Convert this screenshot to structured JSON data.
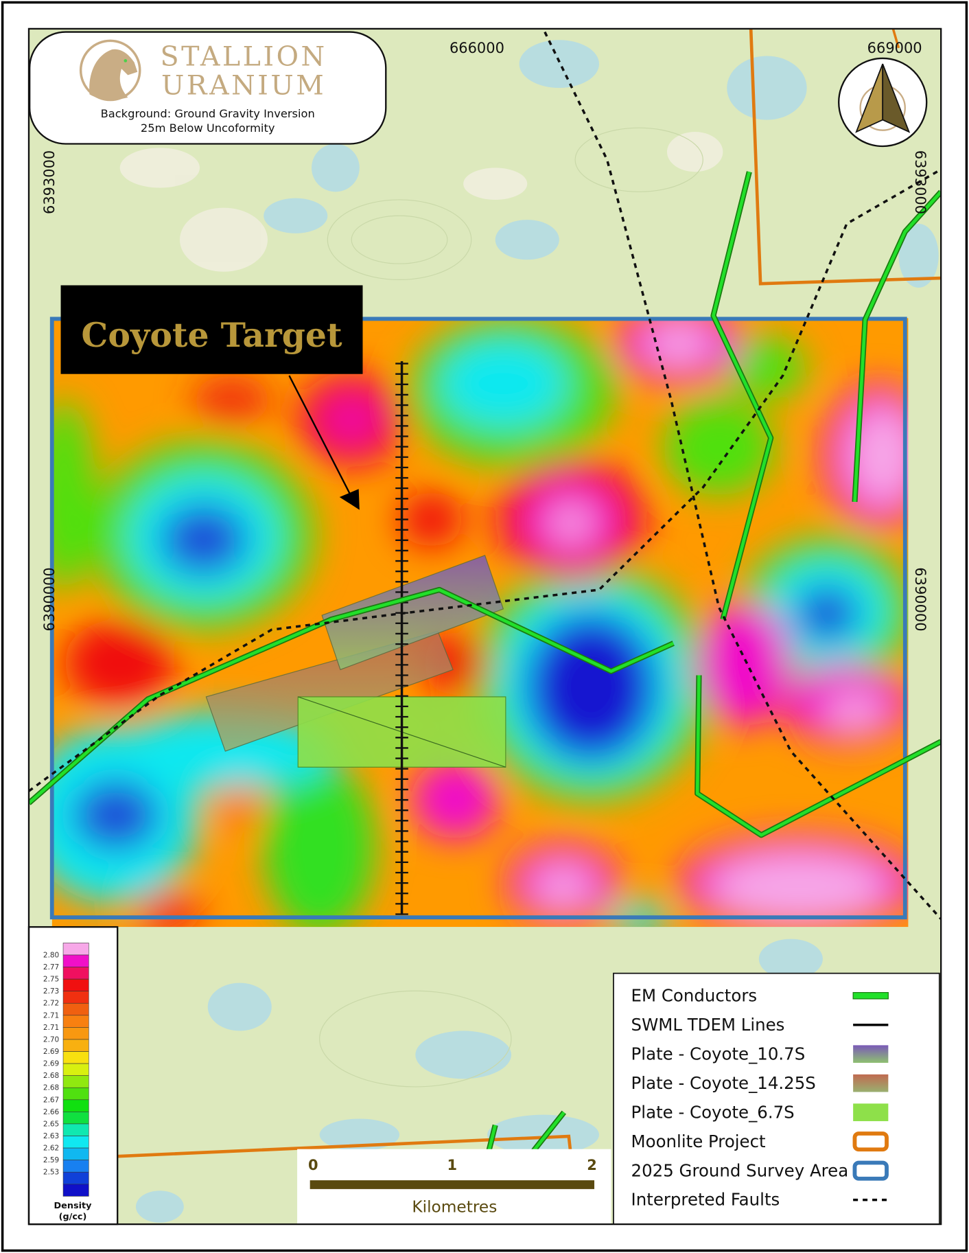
{
  "logo": {
    "line1": "STALLION",
    "line2": "URANIUM"
  },
  "subtitle": {
    "line1": "Background: Ground Gravity Inversion",
    "line2": "25m Below Uncoformity"
  },
  "target_label": "Coyote Target",
  "grid_labels": {
    "easting": [
      "666000",
      "669000"
    ],
    "northing_left": [
      "6393000",
      "6390000"
    ],
    "northing_right": [
      "6393000",
      "6390000"
    ]
  },
  "colorbar": {
    "title_line1": "Density",
    "title_line2": "(g/cc)",
    "ticks": [
      "2.80",
      "2.77",
      "2.75",
      "2.73",
      "2.72",
      "2.71",
      "2.71",
      "2.70",
      "2.69",
      "2.69",
      "2.68",
      "2.68",
      "2.67",
      "2.66",
      "2.65",
      "2.63",
      "2.62",
      "2.59",
      "2.53"
    ],
    "colors": [
      "#f7a8e8",
      "#f010c8",
      "#f01060",
      "#f01010",
      "#f03010",
      "#f06010",
      "#f88010",
      "#f89810",
      "#f8b010",
      "#f8e010",
      "#d8f010",
      "#90e810",
      "#50e010",
      "#10e010",
      "#10e040",
      "#10e8b0",
      "#10e8f0",
      "#10b8f0",
      "#1880f0",
      "#1040d8",
      "#1010c8"
    ]
  },
  "legend": {
    "items": [
      {
        "label": "EM Conductors",
        "symbol": "green-line",
        "color": "#22e02a"
      },
      {
        "label": "SWML TDEM Lines",
        "symbol": "black-line",
        "color": "#000000"
      },
      {
        "label": "Plate - Coyote_10.7S",
        "symbol": "purple-green-gradient-box",
        "color": "#7a6ab0"
      },
      {
        "label": "Plate - Coyote_14.25S",
        "symbol": "brown-green-gradient-box",
        "color": "#b07a60"
      },
      {
        "label": "Plate - Coyote_6.7S",
        "symbol": "green-box",
        "color": "#8ee04a"
      },
      {
        "label": "Moonlite Project",
        "symbol": "orange-outline-box",
        "color": "#e07a10"
      },
      {
        "label": "2025 Ground Survey Area",
        "symbol": "blue-outline-box",
        "color": "#3a7ab8"
      },
      {
        "label": "Interpreted Faults",
        "symbol": "black-dashed-line",
        "color": "#000000"
      }
    ]
  },
  "scale_bar": {
    "ticks": [
      "0",
      "1",
      "2"
    ],
    "unit": "Kilometres",
    "color": "#5a4a10"
  },
  "compass": {
    "icon": "north-arrow-icon",
    "color": "#b89a4a"
  },
  "colors": {
    "basemap": "#dde9bd",
    "water": "#b8dde0",
    "survey_border": "#3a7ab8",
    "moonlite_border": "#e07a10",
    "em_conductor": "#22e02a",
    "target_text": "#b8973a"
  }
}
